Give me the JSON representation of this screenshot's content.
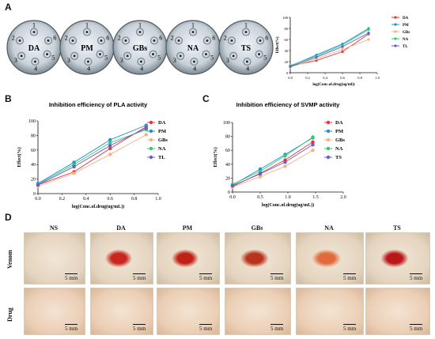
{
  "panels": {
    "A": "A",
    "B": "B",
    "C": "C",
    "D": "D"
  },
  "plates": [
    {
      "label": "DA",
      "wells": [
        "1",
        "2",
        "3",
        "4",
        "5",
        "6"
      ]
    },
    {
      "label": "PM",
      "wells": [
        "1",
        "2",
        "3",
        "4",
        "5",
        "6"
      ]
    },
    {
      "label": "GBs",
      "wells": [
        "1",
        "2",
        "3",
        "4",
        "5",
        "6"
      ]
    },
    {
      "label": "NA",
      "wells": [
        "1",
        "2",
        "3",
        "4",
        "5",
        "6"
      ]
    },
    {
      "label": "TS",
      "wells": [
        "1",
        "2",
        "3",
        "4",
        "5",
        "6"
      ]
    }
  ],
  "colors": {
    "DA": "#e8333a",
    "PM": "#1f8fd6",
    "GBs": "#f4b183",
    "NA": "#2ecc71",
    "TL": "#6a5acd",
    "TS": "#6a5acd"
  },
  "chart_data": [
    {
      "type": "line",
      "title": "",
      "xlabel": "log(Conc.of.drug(ug/ml))",
      "ylabel": "Effect(%)",
      "xlim": [
        0,
        1.0
      ],
      "ylim": [
        0,
        100
      ],
      "xticks": [
        "0.0",
        "0.2",
        "0.4",
        "0.6",
        "0.8",
        "1.0"
      ],
      "yticks": [
        "0",
        "20",
        "40",
        "60",
        "80",
        "100"
      ],
      "x": [
        0.0,
        0.3,
        0.6,
        0.9
      ],
      "series": [
        {
          "name": "DA",
          "values": [
            12,
            22,
            38,
            70
          ]
        },
        {
          "name": "PM",
          "values": [
            12,
            32,
            52,
            80
          ]
        },
        {
          "name": "GBs",
          "values": [
            10,
            25,
            42,
            60
          ]
        },
        {
          "name": "NA",
          "values": [
            13,
            30,
            50,
            78
          ]
        },
        {
          "name": "TL",
          "values": [
            11,
            28,
            47,
            72
          ]
        }
      ]
    },
    {
      "type": "line",
      "title": "Inhibition efficiency of PLA activity",
      "xlabel": "log(Conc.of.drug(ug/mL))",
      "ylabel": "Effect(%)",
      "xlim": [
        0,
        1.0
      ],
      "ylim": [
        0,
        100
      ],
      "xticks": [
        "0.0",
        "0.2",
        "0.4",
        "0.6",
        "0.8",
        "1.0"
      ],
      "yticks": [
        "0",
        "20",
        "40",
        "60",
        "80",
        "100"
      ],
      "x": [
        0.0,
        0.3,
        0.6,
        0.9
      ],
      "series": [
        {
          "name": "DA",
          "values": [
            12,
            30,
            62,
            92
          ]
        },
        {
          "name": "PM",
          "values": [
            14,
            43,
            74,
            94
          ]
        },
        {
          "name": "GBs",
          "values": [
            10,
            28,
            54,
            81
          ]
        },
        {
          "name": "NA",
          "values": [
            13,
            40,
            70,
            88
          ]
        },
        {
          "name": "TL",
          "values": [
            12,
            37,
            66,
            90
          ]
        }
      ]
    },
    {
      "type": "line",
      "title": "Inhibition efficiency of SVMP activity",
      "xlabel": "log(Conc.of.drug(ug/mL))",
      "ylabel": "Effect(%)",
      "xlim": [
        0,
        2.0
      ],
      "ylim": [
        0,
        100
      ],
      "xticks": [
        "0.0",
        "0.5",
        "1.0",
        "1.5",
        "2.0"
      ],
      "yticks": [
        "0",
        "20",
        "40",
        "60",
        "80",
        "100"
      ],
      "x": [
        0.0,
        0.5,
        0.95,
        1.45
      ],
      "series": [
        {
          "name": "DA",
          "values": [
            8,
            27,
            46,
            72
          ]
        },
        {
          "name": "PM",
          "values": [
            10,
            33,
            54,
            78
          ]
        },
        {
          "name": "GBs",
          "values": [
            7,
            22,
            37,
            60
          ]
        },
        {
          "name": "NA",
          "values": [
            11,
            30,
            52,
            79
          ]
        },
        {
          "name": "TS",
          "values": [
            9,
            26,
            43,
            68
          ]
        }
      ]
    }
  ],
  "tissue": {
    "columns": [
      "NS",
      "DA",
      "PM",
      "GBs",
      "NA",
      "TS"
    ],
    "rows": [
      "Venom",
      "Drug"
    ],
    "scale_label": "5 mm"
  }
}
